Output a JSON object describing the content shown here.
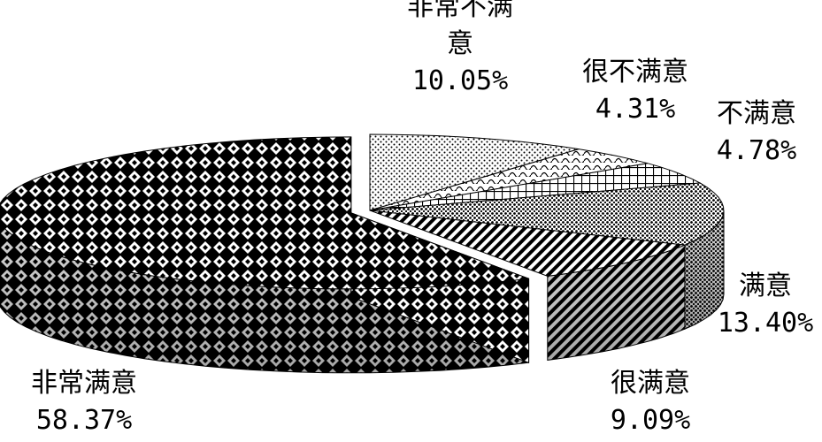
{
  "chart_data": {
    "type": "pie",
    "title": "",
    "categories": [
      "非常不满意",
      "很不满意",
      "不满意",
      "满意",
      "很满意",
      "非常满意"
    ],
    "values": [
      10.05,
      4.31,
      4.78,
      13.4,
      9.09,
      58.37
    ],
    "value_labels": [
      "10.05%",
      "4.31%",
      "4.78%",
      "13.40%",
      "9.09%",
      "58.37%"
    ],
    "label_lines": [
      [
        "非常不满",
        "意"
      ],
      [
        "很不满意"
      ],
      [
        "不满意"
      ],
      [
        "满意"
      ],
      [
        "很满意"
      ],
      [
        "非常满意"
      ]
    ],
    "legend": "none",
    "style": "3d-exploded",
    "colors": {
      "foreground": "#000000",
      "background": "#ffffff"
    },
    "patterns": [
      "fine-dots",
      "wave",
      "grid",
      "dense-dots",
      "diagonal-stripes",
      "diamond-checker"
    ]
  }
}
